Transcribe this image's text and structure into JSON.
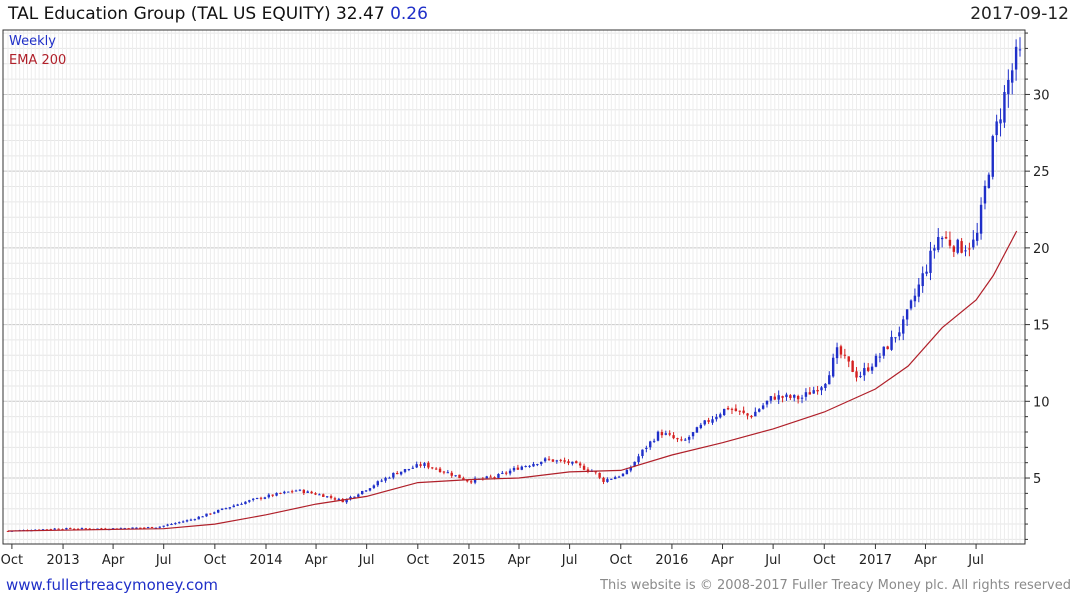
{
  "header": {
    "title": "TAL Education Group (TAL US EQUITY) 32.47",
    "change": "0.26",
    "date": "2017-09-12"
  },
  "footer": {
    "site": "www.fullertreacymoney.com",
    "copyright": "This website is © 2008-2017 Fuller Treacy Money plc. All rights reserved"
  },
  "chart_data": {
    "type": "candlestick",
    "legend": [
      {
        "label": "Weekly",
        "color": "#1f2fc8"
      },
      {
        "label": "EMA 200",
        "color": "#b0202a"
      }
    ],
    "up_color": "#1f2fc8",
    "down_color": "#d42020",
    "y_ticks": [
      5,
      10,
      15,
      20,
      25,
      30
    ],
    "ylim": [
      0.7,
      34.2
    ],
    "x_ticks": [
      "Oct",
      "2013",
      "Apr",
      "Jul",
      "Oct",
      "2014",
      "Apr",
      "Jul",
      "Oct",
      "2015",
      "Apr",
      "Jul",
      "Oct",
      "2016",
      "Apr",
      "Jul",
      "Oct",
      "2017",
      "Apr",
      "Jul"
    ],
    "x_range": [
      "2012-09-24",
      "2017-09-18"
    ],
    "price_path": [
      [
        "2012-09-24",
        1.55
      ],
      [
        "2012-12-20",
        1.7
      ],
      [
        "2013-03-20",
        1.7
      ],
      [
        "2013-06-20",
        1.8
      ],
      [
        "2013-08-20",
        2.3
      ],
      [
        "2013-10-01",
        2.8
      ],
      [
        "2013-11-20",
        3.4
      ],
      [
        "2014-01-01",
        3.8
      ],
      [
        "2014-02-25",
        4.2
      ],
      [
        "2014-04-10",
        3.9
      ],
      [
        "2014-05-20",
        3.5
      ],
      [
        "2014-07-01",
        4.3
      ],
      [
        "2014-08-20",
        5.3
      ],
      [
        "2014-10-10",
        5.9
      ],
      [
        "2014-11-20",
        5.4
      ],
      [
        "2015-01-01",
        4.8
      ],
      [
        "2015-02-20",
        5.1
      ],
      [
        "2015-04-01",
        5.7
      ],
      [
        "2015-05-20",
        6.2
      ],
      [
        "2015-06-30",
        6.0
      ],
      [
        "2015-08-15",
        5.4
      ],
      [
        "2015-08-28",
        4.8
      ],
      [
        "2015-10-10",
        5.3
      ],
      [
        "2015-11-10",
        6.8
      ],
      [
        "2015-12-10",
        8.0
      ],
      [
        "2016-01-20",
        7.3
      ],
      [
        "2016-03-01",
        8.6
      ],
      [
        "2016-04-10",
        9.6
      ],
      [
        "2016-05-20",
        9.0
      ],
      [
        "2016-07-01",
        10.3
      ],
      [
        "2016-08-20",
        10.2
      ],
      [
        "2016-10-01",
        11.2
      ],
      [
        "2016-10-25",
        13.3
      ],
      [
        "2016-12-01",
        11.6
      ],
      [
        "2017-01-10",
        13.0
      ],
      [
        "2017-02-20",
        15.0
      ],
      [
        "2017-03-20",
        17.5
      ],
      [
        "2017-04-25",
        20.8
      ],
      [
        "2017-06-01",
        20.0
      ],
      [
        "2017-07-01",
        20.4
      ],
      [
        "2017-08-01",
        27.0
      ],
      [
        "2017-08-25",
        30.5
      ],
      [
        "2017-09-12",
        32.47
      ]
    ],
    "ema_path": [
      [
        "2012-09-24",
        1.55
      ],
      [
        "2013-01-01",
        1.6
      ],
      [
        "2013-04-01",
        1.65
      ],
      [
        "2013-07-01",
        1.7
      ],
      [
        "2013-10-01",
        2.0
      ],
      [
        "2014-01-01",
        2.6
      ],
      [
        "2014-04-01",
        3.3
      ],
      [
        "2014-07-01",
        3.8
      ],
      [
        "2014-10-01",
        4.7
      ],
      [
        "2015-01-01",
        4.9
      ],
      [
        "2015-04-01",
        5.0
      ],
      [
        "2015-07-01",
        5.4
      ],
      [
        "2015-10-01",
        5.5
      ],
      [
        "2016-01-01",
        6.5
      ],
      [
        "2016-04-01",
        7.3
      ],
      [
        "2016-07-01",
        8.2
      ],
      [
        "2016-10-01",
        9.3
      ],
      [
        "2017-01-01",
        10.8
      ],
      [
        "2017-03-01",
        12.3
      ],
      [
        "2017-05-01",
        14.8
      ],
      [
        "2017-07-01",
        16.6
      ],
      [
        "2017-08-01",
        18.2
      ],
      [
        "2017-09-12",
        21.1
      ]
    ]
  }
}
